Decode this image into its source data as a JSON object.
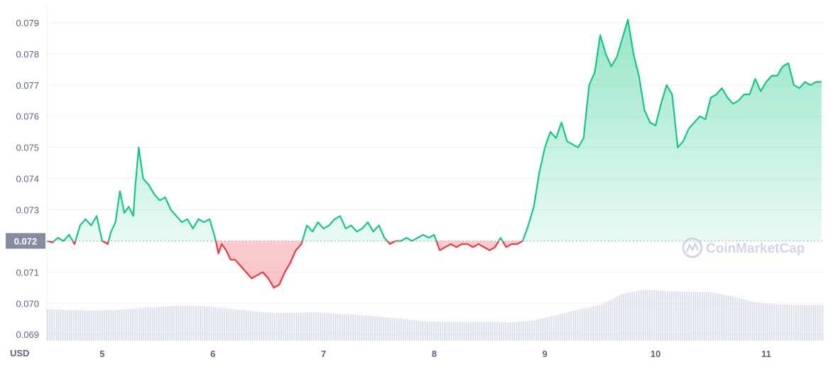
{
  "chart_data": {
    "type": "area",
    "unit_label": "USD",
    "reference_value": 0.072,
    "reference_label": "0.072",
    "ylim": [
      0.0688,
      0.0795
    ],
    "xlim": [
      4.5,
      11.52
    ],
    "y_ticks": [
      {
        "value": 0.069,
        "label": "0.069"
      },
      {
        "value": 0.07,
        "label": "0.070"
      },
      {
        "value": 0.071,
        "label": "0.071"
      },
      {
        "value": 0.073,
        "label": "0.073"
      },
      {
        "value": 0.074,
        "label": "0.074"
      },
      {
        "value": 0.075,
        "label": "0.075"
      },
      {
        "value": 0.076,
        "label": "0.076"
      },
      {
        "value": 0.077,
        "label": "0.077"
      },
      {
        "value": 0.078,
        "label": "0.078"
      },
      {
        "value": 0.079,
        "label": "0.079"
      }
    ],
    "x_ticks": [
      {
        "value": 5,
        "label": "5"
      },
      {
        "value": 6,
        "label": "6"
      },
      {
        "value": 7,
        "label": "7"
      },
      {
        "value": 8,
        "label": "8"
      },
      {
        "value": 9,
        "label": "9"
      },
      {
        "value": 10,
        "label": "10"
      },
      {
        "value": 11,
        "label": "11"
      }
    ],
    "grid": true,
    "colors": {
      "up": "#16c784",
      "down": "#ea3943",
      "grid": "#eff2f5",
      "reference": "#a6b0c3",
      "badge": "#858ca2",
      "volume": "#cfd6e4"
    },
    "series": [
      {
        "x": [
          4.5,
          4.55,
          4.6,
          4.65,
          4.7,
          4.75,
          4.8,
          4.85,
          4.9,
          4.95,
          5.0,
          5.05,
          5.08,
          5.12,
          5.16,
          5.2,
          5.24,
          5.28,
          5.3,
          5.33,
          5.37,
          5.42,
          5.47,
          5.52,
          5.57,
          5.62,
          5.67,
          5.72,
          5.77,
          5.82,
          5.87,
          5.92,
          5.97,
          6.02,
          6.05,
          6.08,
          6.12,
          6.16,
          6.2,
          6.25,
          6.3,
          6.35,
          6.4,
          6.45,
          6.5,
          6.55,
          6.6,
          6.65,
          6.7,
          6.75,
          6.8,
          6.85,
          6.9,
          6.95,
          7.0,
          7.05,
          7.1,
          7.15,
          7.2,
          7.25,
          7.3,
          7.35,
          7.4,
          7.45,
          7.5,
          7.55,
          7.6,
          7.65,
          7.7,
          7.75,
          7.8,
          7.85,
          7.9,
          7.95,
          8.0,
          8.05,
          8.1,
          8.15,
          8.2,
          8.25,
          8.3,
          8.35,
          8.4,
          8.45,
          8.5,
          8.55,
          8.6,
          8.65,
          8.7,
          8.75,
          8.8,
          8.85,
          8.9,
          8.95,
          9.0,
          9.05,
          9.1,
          9.15,
          9.2,
          9.25,
          9.3,
          9.35,
          9.4,
          9.45,
          9.5,
          9.55,
          9.6,
          9.65,
          9.7,
          9.75,
          9.8,
          9.85,
          9.9,
          9.95,
          10.0,
          10.05,
          10.1,
          10.15,
          10.2,
          10.25,
          10.3,
          10.35,
          10.4,
          10.45,
          10.5,
          10.55,
          10.6,
          10.65,
          10.7,
          10.75,
          10.8,
          10.85,
          10.9,
          10.95,
          11.0,
          11.05,
          11.1,
          11.15,
          11.2,
          11.25,
          11.3,
          11.35,
          11.4,
          11.45,
          11.5
        ],
        "y": [
          0.072,
          0.07195,
          0.0721,
          0.072,
          0.0722,
          0.0719,
          0.0725,
          0.0727,
          0.0725,
          0.0728,
          0.072,
          0.0719,
          0.0723,
          0.0726,
          0.0736,
          0.0729,
          0.0731,
          0.0728,
          0.0738,
          0.075,
          0.074,
          0.0738,
          0.0735,
          0.0733,
          0.0734,
          0.073,
          0.0728,
          0.0726,
          0.0727,
          0.0724,
          0.0727,
          0.0726,
          0.0727,
          0.0721,
          0.0716,
          0.0719,
          0.0717,
          0.0714,
          0.0714,
          0.0712,
          0.071,
          0.0708,
          0.0709,
          0.071,
          0.0708,
          0.0705,
          0.0706,
          0.071,
          0.0713,
          0.0717,
          0.0719,
          0.0725,
          0.0723,
          0.0726,
          0.0724,
          0.0725,
          0.0727,
          0.0728,
          0.0724,
          0.0725,
          0.0723,
          0.0724,
          0.0726,
          0.0723,
          0.0725,
          0.0721,
          0.0719,
          0.072,
          0.072,
          0.0721,
          0.072,
          0.0721,
          0.0722,
          0.0721,
          0.0722,
          0.0717,
          0.0718,
          0.0719,
          0.0718,
          0.0719,
          0.0719,
          0.0718,
          0.0719,
          0.0718,
          0.0717,
          0.0718,
          0.0721,
          0.0718,
          0.0719,
          0.0719,
          0.072,
          0.0725,
          0.0731,
          0.0742,
          0.075,
          0.0755,
          0.0753,
          0.0758,
          0.0752,
          0.0751,
          0.075,
          0.0753,
          0.077,
          0.0774,
          0.0786,
          0.078,
          0.0776,
          0.0779,
          0.0785,
          0.0791,
          0.078,
          0.0773,
          0.0762,
          0.0758,
          0.0757,
          0.0764,
          0.077,
          0.0767,
          0.075,
          0.0752,
          0.0756,
          0.0758,
          0.076,
          0.0759,
          0.0766,
          0.0767,
          0.0769,
          0.0766,
          0.0764,
          0.0765,
          0.0767,
          0.0767,
          0.0772,
          0.0768,
          0.0771,
          0.0773,
          0.0773,
          0.0776,
          0.0777,
          0.077,
          0.0769,
          0.0771,
          0.077,
          0.0771,
          0.0771
        ]
      }
    ],
    "volume": {
      "x": [
        4.5,
        4.7,
        4.9,
        5.1,
        5.3,
        5.5,
        5.7,
        5.9,
        6.1,
        6.3,
        6.5,
        6.7,
        6.9,
        7.1,
        7.3,
        7.5,
        7.7,
        7.9,
        8.1,
        8.3,
        8.5,
        8.7,
        8.9,
        9.1,
        9.3,
        9.5,
        9.7,
        9.9,
        10.1,
        10.3,
        10.5,
        10.7,
        10.9,
        11.1,
        11.3,
        11.5
      ],
      "values": [
        0.62,
        0.6,
        0.59,
        0.6,
        0.63,
        0.66,
        0.69,
        0.68,
        0.64,
        0.59,
        0.55,
        0.54,
        0.56,
        0.53,
        0.51,
        0.47,
        0.43,
        0.38,
        0.37,
        0.37,
        0.37,
        0.36,
        0.4,
        0.5,
        0.61,
        0.7,
        0.92,
        1.0,
        0.97,
        0.96,
        0.95,
        0.86,
        0.75,
        0.71,
        0.7,
        0.7
      ]
    }
  },
  "watermark": {
    "text": "CoinMarketCap",
    "icon": "coinmarketcap-logo"
  }
}
